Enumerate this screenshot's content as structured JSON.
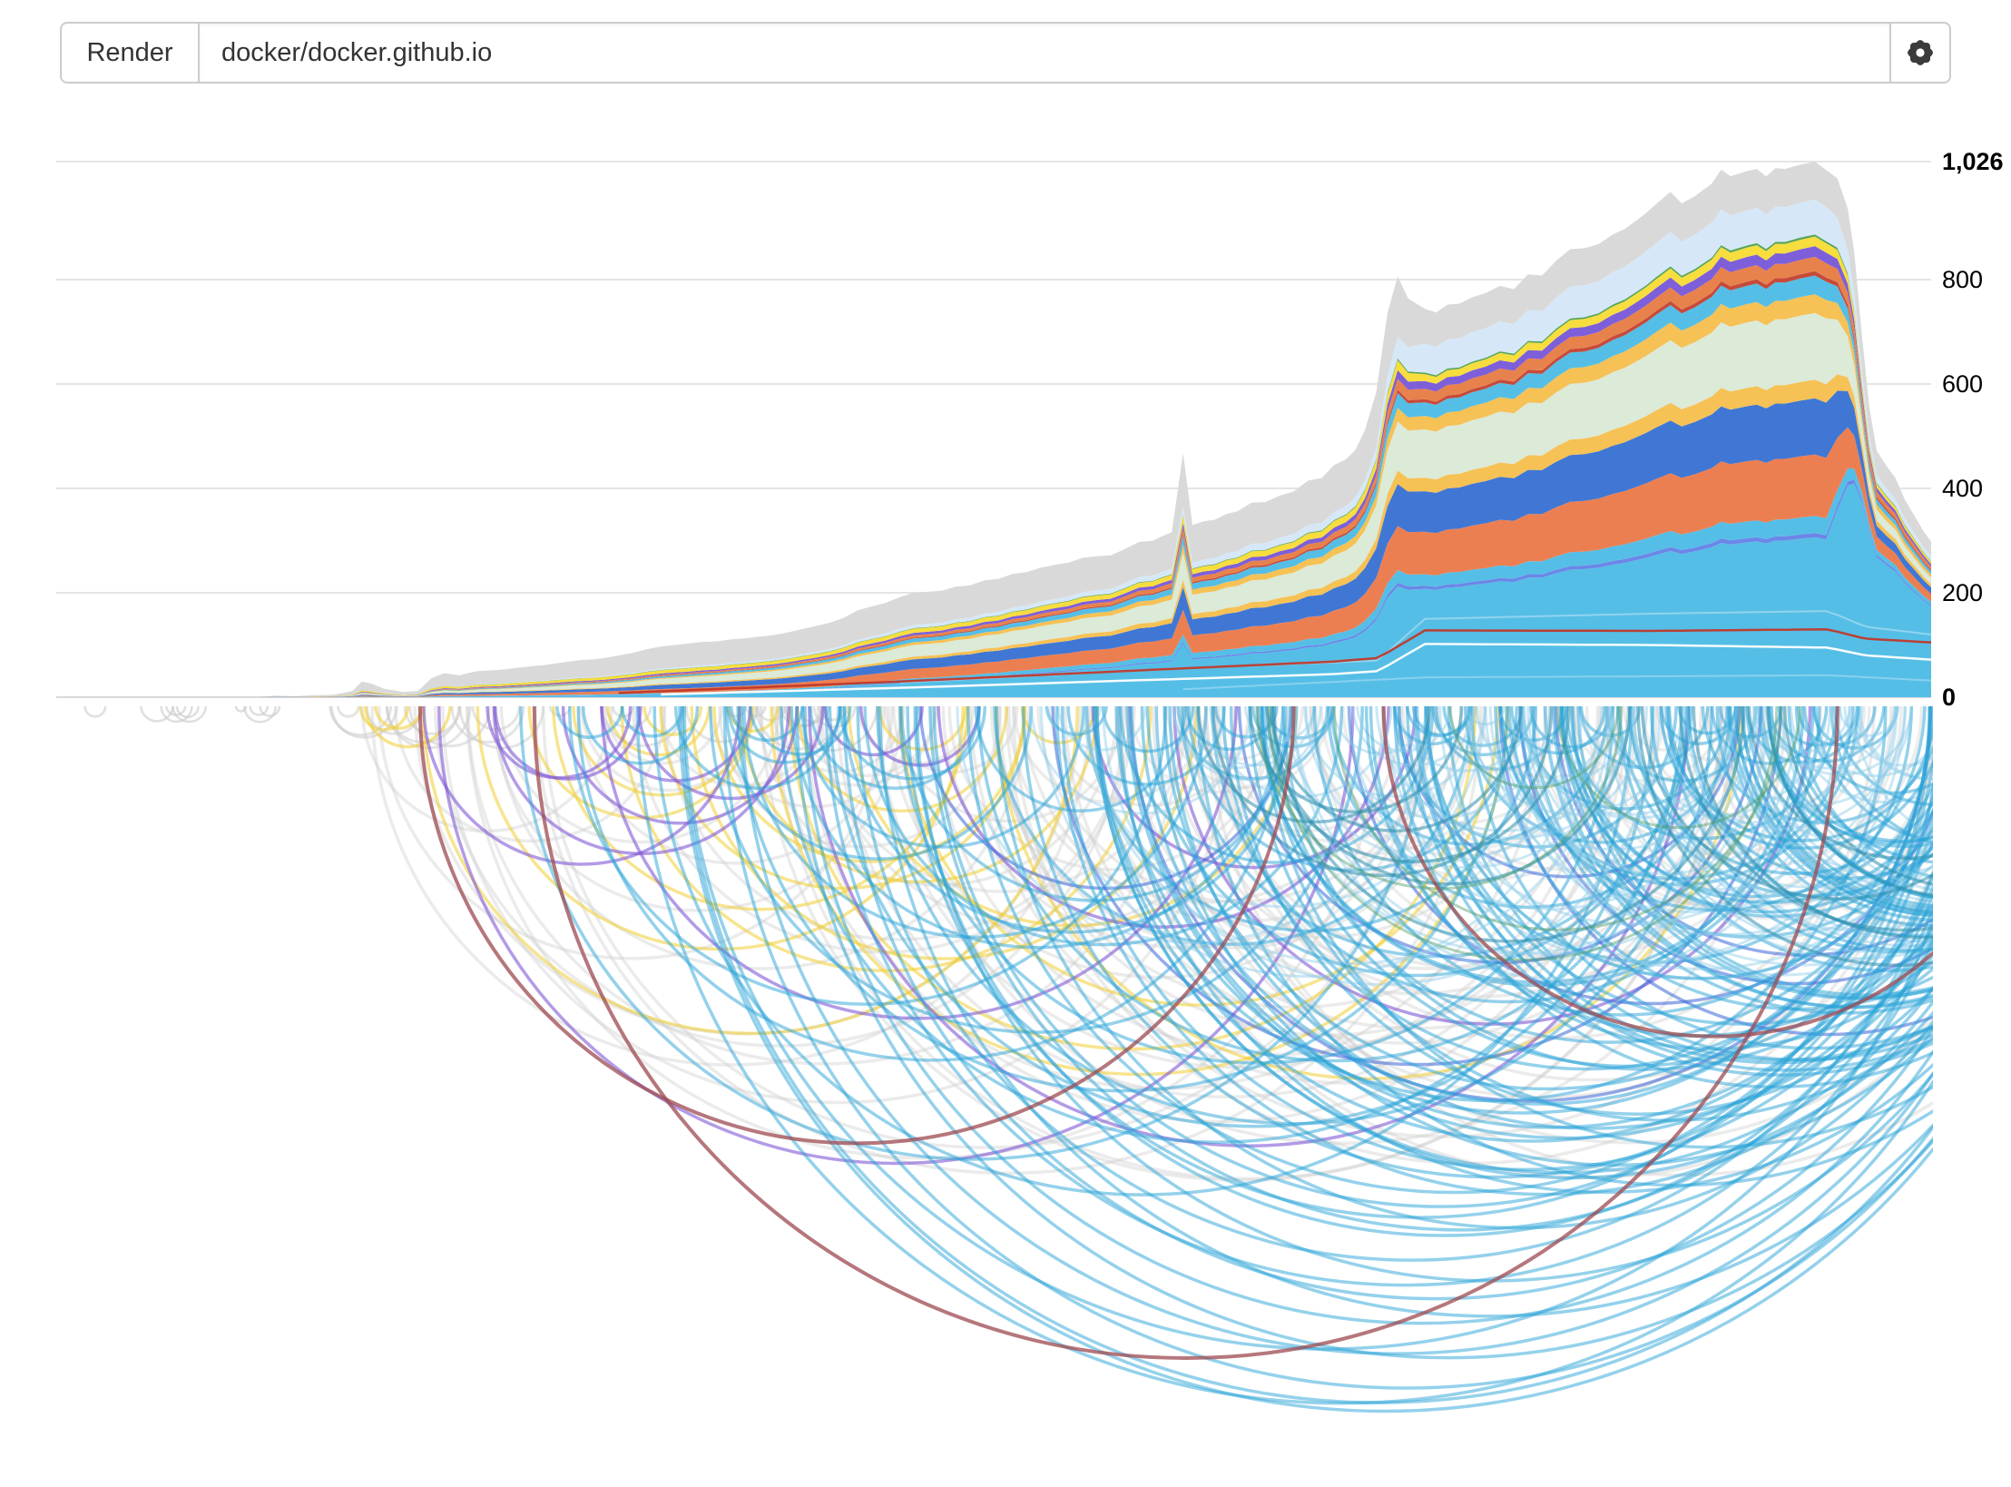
{
  "toolbar": {
    "render_button": "Render",
    "repo_input": {
      "value": "docker/docker.github.io",
      "placeholder": ""
    },
    "settings_icon": "gear-icon"
  },
  "chart_data": {
    "type": "area",
    "title": "",
    "legend": "none",
    "grid": "horizontal",
    "y_axis": {
      "side": "right",
      "max": 1026,
      "ticks": [
        {
          "value": 1026,
          "label": "1,026",
          "bold": true
        },
        {
          "value": 800,
          "label": "800",
          "bold": false
        },
        {
          "value": 600,
          "label": "600",
          "bold": false
        },
        {
          "value": 400,
          "label": "400",
          "bold": false
        },
        {
          "value": 200,
          "label": "200",
          "bold": false
        },
        {
          "value": 0,
          "label": "0",
          "bold": true
        }
      ]
    },
    "envelope": [
      [
        0,
        0
      ],
      [
        0.1,
        0
      ],
      [
        0.108,
        1
      ],
      [
        0.118,
        3
      ],
      [
        0.128,
        2
      ],
      [
        0.138,
        4
      ],
      [
        0.148,
        5
      ],
      [
        0.158,
        12
      ],
      [
        0.163,
        30
      ],
      [
        0.168,
        26
      ],
      [
        0.175,
        16
      ],
      [
        0.185,
        10
      ],
      [
        0.193,
        12
      ],
      [
        0.2,
        36
      ],
      [
        0.207,
        46
      ],
      [
        0.215,
        42
      ],
      [
        0.225,
        50
      ],
      [
        0.235,
        52
      ],
      [
        0.245,
        56
      ],
      [
        0.255,
        60
      ],
      [
        0.265,
        64
      ],
      [
        0.275,
        69
      ],
      [
        0.285,
        72
      ],
      [
        0.3,
        80
      ],
      [
        0.315,
        92
      ],
      [
        0.33,
        100
      ],
      [
        0.345,
        106
      ],
      [
        0.36,
        111
      ],
      [
        0.375,
        116
      ],
      [
        0.39,
        124
      ],
      [
        0.405,
        136
      ],
      [
        0.42,
        152
      ],
      [
        0.435,
        174
      ],
      [
        0.45,
        192
      ],
      [
        0.465,
        202
      ],
      [
        0.48,
        212
      ],
      [
        0.495,
        224
      ],
      [
        0.51,
        236
      ],
      [
        0.525,
        248
      ],
      [
        0.54,
        258
      ],
      [
        0.555,
        270
      ],
      [
        0.57,
        284
      ],
      [
        0.585,
        300
      ],
      [
        0.595,
        316
      ],
      [
        0.601,
        468
      ],
      [
        0.606,
        330
      ],
      [
        0.618,
        340
      ],
      [
        0.63,
        356
      ],
      [
        0.645,
        374
      ],
      [
        0.66,
        394
      ],
      [
        0.675,
        420
      ],
      [
        0.688,
        456
      ],
      [
        0.698,
        512
      ],
      [
        0.704,
        584
      ],
      [
        0.71,
        736
      ],
      [
        0.7155,
        806
      ],
      [
        0.721,
        764
      ],
      [
        0.73,
        744
      ],
      [
        0.742,
        752
      ],
      [
        0.755,
        766
      ],
      [
        0.77,
        788
      ],
      [
        0.785,
        810
      ],
      [
        0.8,
        836
      ],
      [
        0.815,
        860
      ],
      [
        0.83,
        886
      ],
      [
        0.843,
        914
      ],
      [
        0.853,
        944
      ],
      [
        0.861,
        968
      ],
      [
        0.867,
        946
      ],
      [
        0.874,
        960
      ],
      [
        0.883,
        984
      ],
      [
        0.893,
        998
      ],
      [
        0.902,
        1008
      ],
      [
        0.912,
        998
      ],
      [
        0.922,
        1012
      ],
      [
        0.93,
        1020
      ],
      [
        0.938,
        1026
      ],
      [
        0.944,
        1010
      ],
      [
        0.95,
        994
      ],
      [
        0.9555,
        936
      ],
      [
        0.959,
        852
      ],
      [
        0.963,
        696
      ],
      [
        0.967,
        556
      ],
      [
        0.971,
        472
      ],
      [
        0.976,
        444
      ],
      [
        0.981,
        420
      ],
      [
        0.986,
        378
      ],
      [
        0.991,
        348
      ],
      [
        0.996,
        318
      ],
      [
        1,
        298
      ]
    ],
    "share_keys": [
      0.12,
      0.2,
      0.26,
      0.34,
      0.45,
      0.58,
      0.68,
      0.705,
      0.73,
      0.85,
      0.945,
      0.965,
      1.0
    ],
    "series": [
      {
        "name": "skyblue-base",
        "color": "#55BEE6",
        "shares": [
          2,
          3,
          4,
          6,
          14,
          21,
          23,
          25,
          28,
          29,
          30,
          52,
          56
        ]
      },
      {
        "name": "periwinkle-line",
        "color": "#6B86E8",
        "shares": [
          0.5,
          0.5,
          0.6,
          0.7,
          0.8,
          0.8,
          0.8,
          0.8,
          0.8,
          0.8,
          0.8,
          0.8,
          0.8
        ]
      },
      {
        "name": "skyblue-band",
        "color": "#55BEE6",
        "shares": [
          1,
          1,
          1.5,
          2,
          2.5,
          3,
          3,
          3,
          3,
          3.2,
          3.2,
          2,
          2
        ]
      },
      {
        "name": "orange-band",
        "color": "#EC7F52",
        "shares": [
          5,
          6,
          7,
          8,
          9,
          10,
          10,
          10,
          11,
          11.5,
          11.5,
          5,
          5
        ]
      },
      {
        "name": "blue-band",
        "color": "#4077D4",
        "shares": [
          6,
          7,
          7,
          8,
          9,
          9,
          9.5,
          9.5,
          10.5,
          10.5,
          10.5,
          4,
          4
        ]
      },
      {
        "name": "amber-lower",
        "color": "#F6C155",
        "shares": [
          1.5,
          1.5,
          2,
          2,
          2.5,
          3,
          3,
          3,
          3.5,
          3.5,
          3.5,
          2,
          2
        ]
      },
      {
        "name": "palegreen-band",
        "color": "#DCEAD8",
        "shares": [
          7,
          8,
          9,
          10,
          11,
          11,
          11,
          11,
          12.5,
          12.5,
          12.5,
          4,
          4
        ]
      },
      {
        "name": "amber-upper",
        "color": "#F6C155",
        "shares": [
          1.5,
          1.5,
          2,
          2,
          2.5,
          3,
          3,
          3,
          3.5,
          3.5,
          3.5,
          2,
          2
        ]
      },
      {
        "name": "skyblue-upper",
        "color": "#55BEE6",
        "shares": [
          2,
          2.5,
          3,
          3,
          3.5,
          3.5,
          3.5,
          3.5,
          3.5,
          3.5,
          3.5,
          2,
          2
        ]
      },
      {
        "name": "red-band",
        "color": "#C64A3A",
        "shares": [
          0.8,
          0.8,
          0.8,
          0.8,
          0.8,
          0.8,
          0.8,
          0.8,
          0.8,
          0.8,
          0.8,
          0.8,
          0.8
        ]
      },
      {
        "name": "orange-upper",
        "color": "#E8824D",
        "shares": [
          1.5,
          1.8,
          2,
          2,
          2.3,
          2.5,
          2.5,
          2.5,
          2.7,
          2.7,
          2.7,
          2,
          2
        ]
      },
      {
        "name": "purple-band",
        "color": "#7D5FD9",
        "shares": [
          3.5,
          3.5,
          3,
          2.5,
          2.2,
          2,
          2,
          2,
          2,
          2,
          2,
          1.5,
          1.5
        ]
      },
      {
        "name": "yellow-band",
        "color": "#F7DD3E",
        "shares": [
          8,
          8,
          7,
          6,
          4,
          3,
          2.8,
          2.8,
          1.8,
          1.8,
          1.8,
          1.5,
          1.5
        ]
      },
      {
        "name": "green-sliver",
        "color": "#57A55A",
        "shares": [
          1,
          1,
          0.8,
          0.6,
          0.5,
          0.4,
          0.4,
          0.4,
          0.4,
          0.4,
          0.4,
          0.4,
          0.4
        ]
      },
      {
        "name": "paleblue-band",
        "color": "#D6E8F7",
        "shares": [
          1.5,
          1.5,
          2,
          2.5,
          3,
          3.3,
          3.5,
          3.5,
          7.5,
          7,
          6.5,
          3,
          3
        ]
      },
      {
        "name": "gray-cap",
        "color": "#D9D9D9",
        "shares": [
          57,
          52,
          47,
          42,
          31,
          22,
          20,
          18,
          9,
          8,
          7,
          9,
          9
        ]
      }
    ],
    "overlay_lines": [
      {
        "name": "faint-line-upper",
        "color": "#FFFFFF",
        "opacity": 0.35,
        "width": 2,
        "points": [
          [
            0.45,
            28
          ],
          [
            0.6,
            55
          ],
          [
            0.705,
            70
          ],
          [
            0.73,
            150
          ],
          [
            0.85,
            160
          ],
          [
            0.945,
            165
          ],
          [
            0.965,
            135
          ],
          [
            1,
            120
          ]
        ]
      },
      {
        "name": "red-line",
        "color": "#C0392B",
        "opacity": 0.95,
        "width": 2.5,
        "points": [
          [
            0.3,
            8
          ],
          [
            0.45,
            30
          ],
          [
            0.6,
            55
          ],
          [
            0.68,
            68
          ],
          [
            0.705,
            75
          ],
          [
            0.73,
            128
          ],
          [
            0.85,
            127
          ],
          [
            0.945,
            130
          ],
          [
            0.965,
            112
          ],
          [
            1,
            105
          ]
        ]
      },
      {
        "name": "white-line",
        "color": "#FFFFFF",
        "opacity": 0.95,
        "width": 2.5,
        "points": [
          [
            0.32,
            5
          ],
          [
            0.45,
            18
          ],
          [
            0.6,
            35
          ],
          [
            0.68,
            44
          ],
          [
            0.705,
            50
          ],
          [
            0.73,
            102
          ],
          [
            0.85,
            100
          ],
          [
            0.945,
            95
          ],
          [
            0.965,
            80
          ],
          [
            1,
            72
          ]
        ]
      },
      {
        "name": "faint-line-lower",
        "color": "#FFFFFF",
        "opacity": 0.3,
        "width": 2,
        "points": [
          [
            0.6,
            15
          ],
          [
            0.73,
            38
          ],
          [
            0.85,
            40
          ],
          [
            0.945,
            42
          ],
          [
            1,
            32
          ]
        ]
      }
    ],
    "arc_diagram": {
      "seed": 20177,
      "groups": [
        {
          "name": "tiny-left-loops",
          "color": "#C9C9C9",
          "opacity": 0.6,
          "width": 2.5,
          "count": 10,
          "x1": [
            0.0,
            0.12
          ],
          "span": [
            0.004,
            0.018
          ]
        },
        {
          "name": "small-gray-loops",
          "color": "#C9C9C9",
          "opacity": 0.5,
          "width": 3,
          "count": 26,
          "x1": [
            0.12,
            0.42
          ],
          "span": [
            0.008,
            0.05
          ]
        },
        {
          "name": "gray-large",
          "color": "#CFCFCF",
          "opacity": 0.42,
          "width": 3.5,
          "count": 66,
          "x1": [
            0.13,
            0.62
          ],
          "span": [
            0.06,
            0.52
          ],
          "spanExp": 1.4
        },
        {
          "name": "gray-right",
          "color": "#CFCFCF",
          "opacity": 0.38,
          "width": 3.5,
          "count": 26,
          "x1": [
            0.55,
            0.95
          ],
          "span": [
            0.04,
            0.3
          ]
        },
        {
          "name": "yellow",
          "color": "#F1CD33",
          "opacity": 0.55,
          "width": 3.5,
          "count": 24,
          "x1": [
            0.16,
            0.55
          ],
          "span": [
            0.02,
            0.42
          ],
          "spanExp": 1.3
        },
        {
          "name": "purple",
          "color": "#8059D6",
          "opacity": 0.6,
          "width": 3.5,
          "count": 15,
          "x1": [
            0.15,
            0.6
          ],
          "span": [
            0.04,
            0.5
          ],
          "spanExp": 1.2
        },
        {
          "name": "steel-blue",
          "color": "#3B66D8",
          "opacity": 0.55,
          "width": 3.5,
          "count": 9,
          "x1": [
            0.45,
            0.85
          ],
          "span": [
            0.08,
            0.45
          ]
        },
        {
          "name": "sky-main",
          "color": "#29A3D7",
          "opacity": 0.5,
          "width": 3.5,
          "count": 130,
          "x1": [
            0.22,
            0.95
          ],
          "x1Exp": 0.65,
          "span": [
            0.03,
            0.55
          ],
          "spanExp": 1.6
        },
        {
          "name": "sky-light",
          "color": "#8FCDE8",
          "opacity": 0.45,
          "width": 3,
          "count": 70,
          "x1": [
            0.45,
            0.985
          ],
          "x1Exp": 0.8,
          "span": [
            0.02,
            0.3
          ]
        },
        {
          "name": "sky-concentric",
          "color": "#29A3D7",
          "opacity": 0.5,
          "width": 3.5,
          "count": 42,
          "x1": [
            0.3,
            0.93
          ],
          "x2": [
            0.99,
            1.1
          ]
        },
        {
          "name": "teal",
          "color": "#2F8FAE",
          "opacity": 0.55,
          "width": 3.5,
          "count": 14,
          "x1": [
            0.6,
            0.95
          ],
          "span": [
            0.05,
            0.35
          ]
        },
        {
          "name": "green",
          "color": "#4F9D6B",
          "opacity": 0.45,
          "width": 3,
          "count": 5,
          "x1": [
            0.62,
            0.9
          ],
          "span": [
            0.08,
            0.28
          ]
        }
      ],
      "highlight_arcs": [
        {
          "name": "maroon-arc-1",
          "color": "#9C4A50",
          "opacity": 0.75,
          "width": 4,
          "x1": 0.194,
          "x2": 0.66
        },
        {
          "name": "maroon-arc-2",
          "color": "#9C4A50",
          "opacity": 0.75,
          "width": 4,
          "x1": 0.255,
          "x2": 0.95
        },
        {
          "name": "maroon-arc-3",
          "color": "#9C4A50",
          "opacity": 0.75,
          "width": 4,
          "x1": 0.708,
          "x2": 1.06
        }
      ]
    },
    "colors": {
      "grid": "#E4E4E4",
      "axis_baseline": "#CCCCCC",
      "tick_label": "#000000"
    }
  }
}
